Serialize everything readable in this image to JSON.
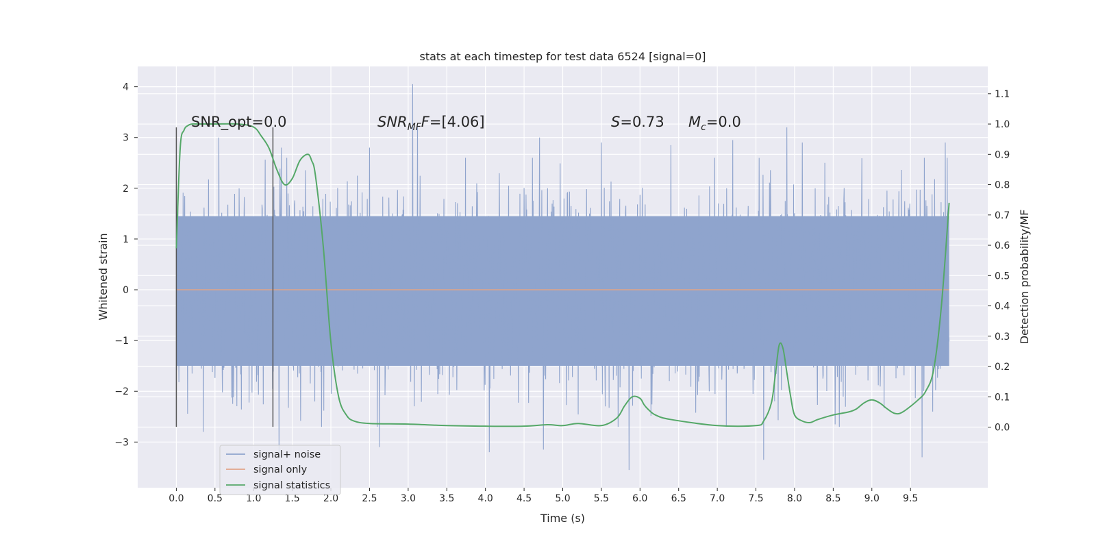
{
  "chart_data": {
    "type": "line",
    "title": "stats at each timestep for test data 6524 [signal=0]",
    "xlabel": "Time (s)",
    "ylabel": "Whitened strain",
    "y2label": "Detection probability/MF",
    "xlim": [
      -0.5,
      10.5
    ],
    "ylim": [
      -3.9,
      4.4
    ],
    "y2lim": [
      -0.2,
      1.19
    ],
    "x_ticks": [
      "0.0",
      "0.5",
      "1.0",
      "1.5",
      "2.0",
      "2.5",
      "3.0",
      "3.5",
      "4.0",
      "4.5",
      "5.0",
      "5.5",
      "6.0",
      "6.5",
      "7.0",
      "7.5",
      "8.0",
      "8.5",
      "9.0",
      "9.5"
    ],
    "y_ticks": [
      "4",
      "3",
      "2",
      "1",
      "0",
      "−1",
      "−2",
      "−3"
    ],
    "y2_ticks": [
      "1.1",
      "1.0",
      "0.9",
      "0.8",
      "0.7",
      "0.6",
      "0.5",
      "0.4",
      "0.3",
      "0.2",
      "0.1",
      "0.0"
    ],
    "grid": true,
    "legend": "lower-left",
    "annotations": {
      "snr_opt": "SNR_opt=0.0",
      "snr_mf_base": "SNR",
      "snr_mf_sub": "MF",
      "snr_mf_value": "=[4.06]",
      "s_symbol": "S",
      "s_value": "=0.73",
      "mc_symbol": "M",
      "mc_sub": "c",
      "mc_value": "=0.0"
    },
    "window_markers": {
      "x": [
        0.0,
        1.25
      ],
      "y_range": [
        -2.7,
        3.2
      ]
    },
    "series": [
      {
        "name": "signal+ noise",
        "color": "#8fa4cd",
        "time_range": [
          0.0,
          10.0
        ],
        "band": [
          -1.5,
          1.45
        ],
        "peaks": [
          {
            "x": 0.55,
            "y": 3.0
          },
          {
            "x": 1.36,
            "y": 2.8
          },
          {
            "x": 2.5,
            "y": 2.8
          },
          {
            "x": 3.06,
            "y": 4.05
          },
          {
            "x": 3.12,
            "y": 3.2
          },
          {
            "x": 4.7,
            "y": 3.0
          },
          {
            "x": 5.5,
            "y": 2.9
          },
          {
            "x": 6.4,
            "y": 2.85
          },
          {
            "x": 7.2,
            "y": 2.95
          },
          {
            "x": 7.9,
            "y": 3.2
          },
          {
            "x": 8.1,
            "y": 2.9
          },
          {
            "x": 9.95,
            "y": 2.9
          }
        ],
        "troughs": [
          {
            "x": 1.33,
            "y": -3.3
          },
          {
            "x": 2.63,
            "y": -3.1
          },
          {
            "x": 4.05,
            "y": -3.2
          },
          {
            "x": 4.75,
            "y": -3.15
          },
          {
            "x": 5.86,
            "y": -3.55
          },
          {
            "x": 7.6,
            "y": -3.35
          },
          {
            "x": 9.65,
            "y": -3.3
          },
          {
            "x": 0.35,
            "y": -2.8
          },
          {
            "x": 1.88,
            "y": -2.7
          }
        ]
      },
      {
        "name": "signal only",
        "color": "#e1a488",
        "x": [
          0.0,
          10.0
        ],
        "y": [
          0.0,
          0.0
        ]
      },
      {
        "name": "signal statistics",
        "color": "#55a868",
        "axis": "right",
        "x": [
          0.0,
          0.05,
          0.1,
          0.15,
          0.2,
          0.3,
          0.5,
          0.8,
          1.0,
          1.1,
          1.2,
          1.3,
          1.4,
          1.5,
          1.6,
          1.7,
          1.75,
          1.8,
          1.9,
          2.0,
          2.1,
          2.2,
          2.3,
          2.5,
          3.0,
          3.5,
          4.0,
          4.5,
          4.8,
          5.0,
          5.2,
          5.5,
          5.7,
          5.8,
          5.9,
          6.0,
          6.05,
          6.1,
          6.2,
          6.4,
          7.0,
          7.5,
          7.6,
          7.7,
          7.75,
          7.8,
          7.85,
          7.9,
          7.95,
          8.0,
          8.1,
          8.2,
          8.3,
          8.5,
          8.7,
          8.8,
          8.9,
          9.0,
          9.1,
          9.2,
          9.3,
          9.4,
          9.6,
          9.7,
          9.8,
          9.9,
          10.0
        ],
        "y": [
          0.59,
          0.92,
          0.98,
          0.995,
          1.0,
          1.0,
          1.0,
          1.0,
          0.99,
          0.96,
          0.92,
          0.85,
          0.8,
          0.82,
          0.88,
          0.9,
          0.88,
          0.83,
          0.6,
          0.28,
          0.1,
          0.04,
          0.02,
          0.012,
          0.01,
          0.005,
          0.003,
          0.003,
          0.008,
          0.005,
          0.012,
          0.005,
          0.03,
          0.07,
          0.1,
          0.095,
          0.075,
          0.06,
          0.04,
          0.025,
          0.005,
          0.005,
          0.02,
          0.08,
          0.17,
          0.27,
          0.26,
          0.18,
          0.1,
          0.04,
          0.02,
          0.015,
          0.025,
          0.04,
          0.05,
          0.06,
          0.08,
          0.09,
          0.08,
          0.06,
          0.045,
          0.05,
          0.09,
          0.12,
          0.19,
          0.4,
          0.74
        ]
      }
    ]
  }
}
